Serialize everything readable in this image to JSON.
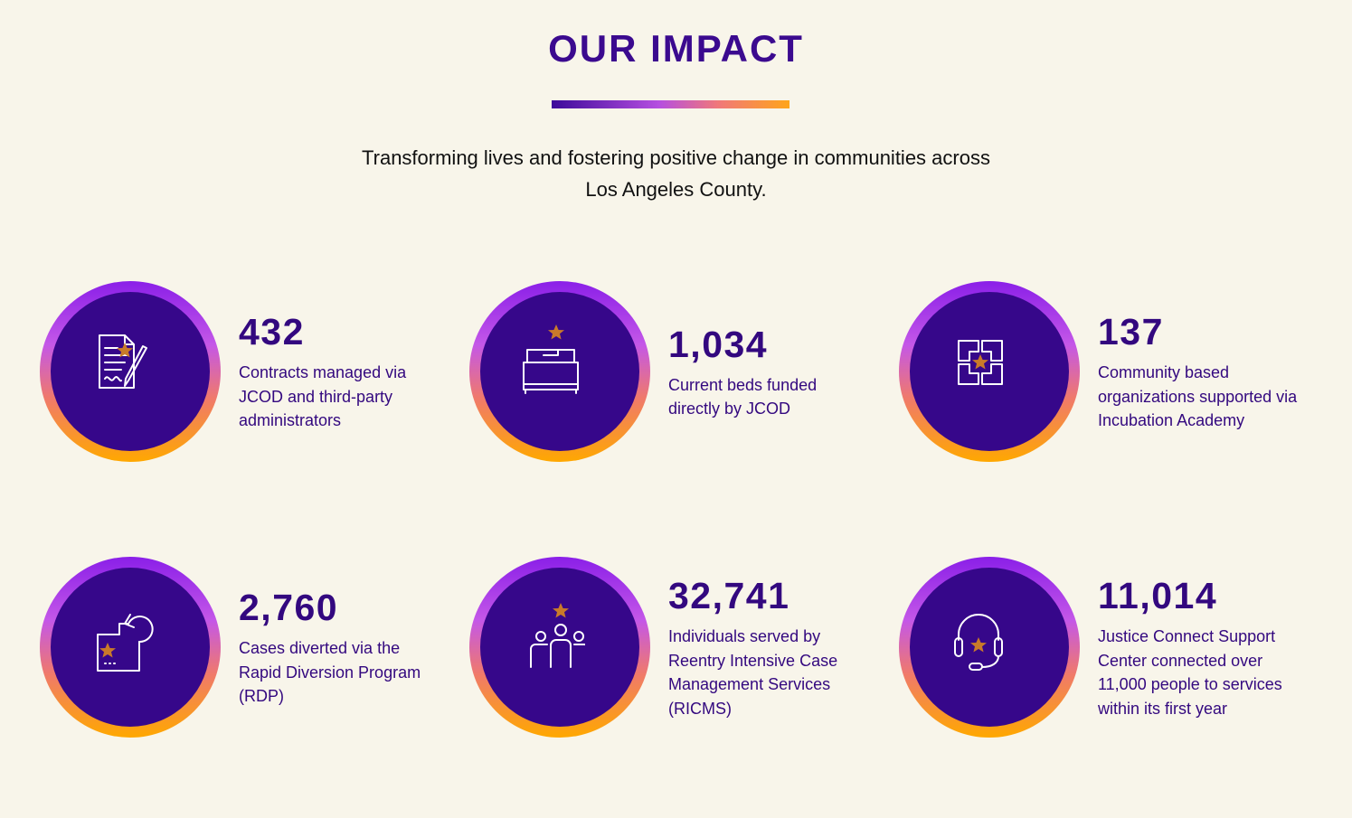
{
  "header": {
    "title": "OUR IMPACT",
    "subtitle_lines": [
      "Transforming lives and fostering positive change in communities across",
      "Los Angeles County."
    ]
  },
  "stats": [
    {
      "number": "432",
      "description_lines": [
        "Contracts managed via",
        "JCOD and third-party",
        "administrators"
      ]
    },
    {
      "number": "1,034",
      "description_lines": [
        "Current beds funded",
        "directly by JCOD"
      ]
    },
    {
      "number": "137",
      "description_lines": [
        "Community based",
        "organizations supported via",
        "Incubation Academy"
      ]
    },
    {
      "number": "2,760",
      "description_lines": [
        "Cases diverted via the",
        "Rapid Diversion Program",
        "(RDP)"
      ]
    },
    {
      "number": "32,741",
      "description_lines": [
        "Individuals served by",
        "Reentry Intensive Case",
        "Management Services",
        "(RICMS)"
      ]
    },
    {
      "number": "11,014",
      "description_lines": [
        "Justice Connect Support",
        "Center connected over",
        "11,000 people to services",
        "within its first year"
      ]
    }
  ]
}
